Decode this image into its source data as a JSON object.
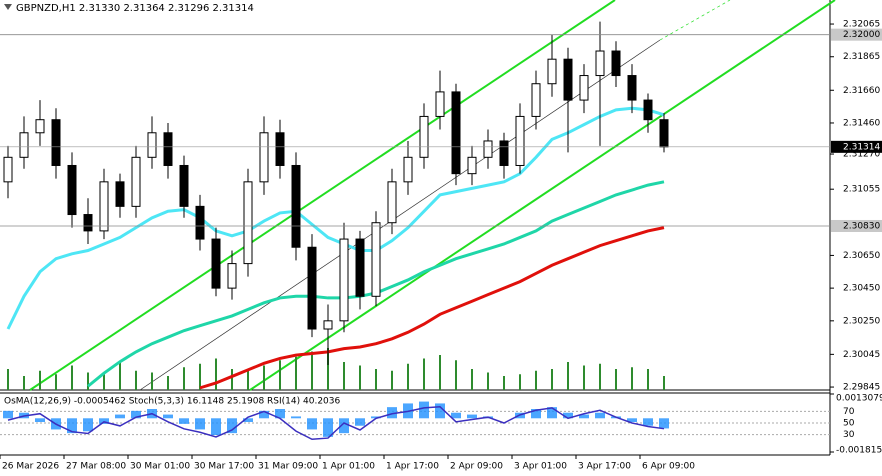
{
  "chart_data": {
    "type": "candlestick",
    "title": "GBPNZD,H1 2.31330 2.31364 2.31296 2.31314",
    "categories": [
      "26 Mar 2026",
      null,
      null,
      null,
      "27 Mar 08:00",
      null,
      null,
      null,
      "30 Mar 01:00",
      null,
      null,
      null,
      "30 Mar 17:00",
      null,
      null,
      null,
      "31 Mar 09:00",
      null,
      null,
      null,
      "1 Apr 01:00",
      null,
      null,
      null,
      "1 Apr 17:00",
      null,
      null,
      null,
      "2 Apr 09:00",
      null,
      null,
      null,
      "3 Apr 01:00",
      null,
      null,
      null,
      "3 Apr 17:00",
      null,
      null,
      null,
      "6 Apr 09:00",
      null
    ],
    "ohlc": {
      "open": [
        2.311,
        2.3125,
        2.314,
        2.3148,
        2.312,
        2.309,
        2.308,
        2.311,
        2.3095,
        2.3125,
        2.314,
        2.312,
        2.3095,
        2.3075,
        2.3045,
        2.306,
        2.311,
        2.314,
        2.312,
        2.307,
        2.302,
        2.3025,
        2.3075,
        2.304,
        2.3085,
        2.311,
        2.3125,
        2.315,
        2.3165,
        2.3115,
        2.3125,
        2.3135,
        2.312,
        2.315,
        2.317,
        2.3185,
        2.316,
        2.3175,
        2.319,
        2.3175,
        2.316,
        2.3148
      ],
      "high": [
        2.3132,
        2.315,
        2.316,
        2.3155,
        2.3128,
        2.31,
        2.3118,
        2.3115,
        2.3132,
        2.315,
        2.3146,
        2.3126,
        2.3102,
        2.3082,
        2.3068,
        2.3118,
        2.315,
        2.3148,
        2.3128,
        2.3078,
        2.3035,
        2.3085,
        2.308,
        2.3092,
        2.3118,
        2.3135,
        2.3158,
        2.3178,
        2.317,
        2.3132,
        2.3142,
        2.314,
        2.3158,
        2.3178,
        2.32,
        2.3192,
        2.3182,
        2.3208,
        2.3196,
        2.3182,
        2.3164,
        2.3152
      ],
      "low": [
        2.31,
        2.3118,
        2.3132,
        2.3112,
        2.3082,
        2.3072,
        2.3075,
        2.3088,
        2.3088,
        2.3118,
        2.3112,
        2.3088,
        2.3068,
        2.304,
        2.3038,
        2.3052,
        2.3102,
        2.3112,
        2.3062,
        2.3015,
        2.2998,
        2.3018,
        2.3032,
        2.3034,
        2.3078,
        2.3102,
        2.3118,
        2.3142,
        2.3108,
        2.3108,
        2.3118,
        2.3112,
        2.3115,
        2.3142,
        2.3162,
        2.3128,
        2.3152,
        2.3132,
        2.3168,
        2.3152,
        2.314,
        2.3128
      ],
      "close": [
        2.3125,
        2.314,
        2.3148,
        2.312,
        2.309,
        2.308,
        2.311,
        2.3095,
        2.3125,
        2.314,
        2.312,
        2.3095,
        2.3075,
        2.3045,
        2.306,
        2.311,
        2.314,
        2.312,
        2.307,
        2.302,
        2.3025,
        2.3075,
        2.304,
        2.3085,
        2.311,
        2.3125,
        2.315,
        2.3165,
        2.3115,
        2.3125,
        2.3135,
        2.312,
        2.315,
        2.317,
        2.3185,
        2.316,
        2.3175,
        2.319,
        2.3175,
        2.316,
        2.3148,
        2.31314
      ]
    },
    "color": "#000000",
    "series": [
      {
        "color": "#4ee6f5",
        "values": [
          2.302,
          2.304,
          2.3055,
          2.3063,
          2.3066,
          2.3068,
          2.3072,
          2.3076,
          2.3082,
          2.3088,
          2.3092,
          2.3093,
          2.3088,
          2.308,
          2.3077,
          2.308,
          2.3086,
          2.3091,
          2.3092,
          2.3084,
          2.3076,
          2.3072,
          2.3068,
          2.3068,
          2.3074,
          2.3082,
          2.3092,
          2.3102,
          2.3104,
          2.3106,
          2.3108,
          2.311,
          2.3115,
          2.3125,
          2.3136,
          2.314,
          2.3145,
          2.315,
          2.3154,
          2.3155,
          2.3154,
          2.3151
        ]
      },
      {
        "color": "#1fd6a8",
        "values": [
          null,
          null,
          null,
          null,
          null,
          2.2985,
          2.2993,
          2.3,
          2.3006,
          2.3011,
          2.3015,
          2.3019,
          2.3022,
          2.3025,
          2.3028,
          2.3032,
          2.3036,
          2.3039,
          2.304,
          2.304,
          2.3039,
          2.3039,
          2.304,
          2.3042,
          2.3046,
          2.305,
          2.3055,
          2.3059,
          2.3063,
          2.3066,
          2.3069,
          2.3072,
          2.3076,
          2.308,
          2.3086,
          2.309,
          2.3094,
          2.3098,
          2.3102,
          2.3105,
          2.3108,
          2.311
        ]
      },
      {
        "color": "#e0100b",
        "values": [
          null,
          null,
          null,
          null,
          null,
          null,
          null,
          null,
          null,
          null,
          null,
          null,
          2.2984,
          2.2987,
          2.2991,
          2.2995,
          2.2999,
          2.3002,
          2.3004,
          2.3005,
          2.3006,
          2.3008,
          2.3009,
          2.3011,
          2.3014,
          2.3018,
          2.3023,
          2.3029,
          2.3033,
          2.3037,
          2.3041,
          2.3045,
          2.3049,
          2.3054,
          2.3059,
          2.3063,
          2.3067,
          2.3071,
          2.3074,
          2.3077,
          2.308,
          2.3082
        ]
      }
    ],
    "volume": {
      "color": "#2e8b2e",
      "values": [
        60,
        40,
        55,
        45,
        70,
        50,
        45,
        80,
        55,
        50,
        40,
        65,
        75,
        90,
        60,
        55,
        70,
        85,
        95,
        110,
        120,
        80,
        70,
        60,
        55,
        75,
        90,
        100,
        85,
        60,
        50,
        40,
        45,
        55,
        60,
        80,
        70,
        75,
        60,
        65,
        60,
        40
      ]
    },
    "ylim": [
      2.29827,
      2.32212
    ],
    "yticks": [
      {
        "value": 2.32065,
        "label": "2.32065"
      },
      {
        "value": 2.31865,
        "label": "2.31865"
      },
      {
        "value": 2.3166,
        "label": "2.31660"
      },
      {
        "value": 2.3146,
        "label": "2.31460"
      },
      {
        "value": 2.3127,
        "label": "2.31270"
      },
      {
        "value": 2.31055,
        "label": "2.31055"
      },
      {
        "value": 2.3065,
        "label": "2.30650"
      },
      {
        "value": 2.3045,
        "label": "2.30450"
      },
      {
        "value": 2.3025,
        "label": "2.30250"
      },
      {
        "value": 2.30045,
        "label": "2.30045"
      },
      {
        "value": 2.29845,
        "label": "2.29845"
      }
    ],
    "hlines": [
      {
        "value": 2.32,
        "label": "2.32000"
      },
      {
        "value": 2.3083,
        "label": "2.30830"
      }
    ],
    "last_price": {
      "value": 2.31314,
      "label": "2.31314"
    },
    "indicator": {
      "title": "OsMA(12,26,9) -0.0005462 Stoch(5,3,3) 16.1148 25.1908 RSI(14) 40.2036",
      "osma_color": "#1e90ff",
      "osma": [
        0.0004,
        0.0003,
        -0.0002,
        -0.0006,
        -0.0008,
        -0.0007,
        -0.0003,
        0.0002,
        0.0004,
        0.0005,
        0.0002,
        -0.0003,
        -0.0006,
        -0.0009,
        -0.0008,
        -0.0002,
        0.0004,
        0.0005,
        0.0001,
        -0.0006,
        -0.001,
        -0.0008,
        -0.0004,
        0.0001,
        0.0006,
        0.0008,
        0.0009,
        0.0008,
        0.0003,
        0.0002,
        0.0001,
        0.0,
        0.0003,
        0.0005,
        0.0006,
        0.0003,
        0.0002,
        0.0003,
        0.0001,
        -0.0002,
        -0.0004,
        -0.0005462
      ],
      "osma_lim": [
        -0.001815,
        0.0013079
      ],
      "osma_ticks": [
        {
          "value": 0.0013079,
          "label": "0.0013079"
        },
        {
          "value": -0.001815,
          "label": "-0.001815"
        }
      ],
      "rsi_color": "#3b2fbf",
      "rsi": [
        55,
        62,
        66,
        48,
        35,
        32,
        52,
        45,
        60,
        66,
        52,
        40,
        34,
        26,
        38,
        60,
        70,
        58,
        36,
        22,
        24,
        50,
        38,
        58,
        66,
        70,
        76,
        78,
        52,
        56,
        60,
        50,
        64,
        72,
        76,
        58,
        66,
        72,
        60,
        50,
        44,
        40.2036
      ],
      "ylim": [
        0,
        100
      ],
      "yticks": [
        30,
        50,
        70
      ]
    }
  }
}
